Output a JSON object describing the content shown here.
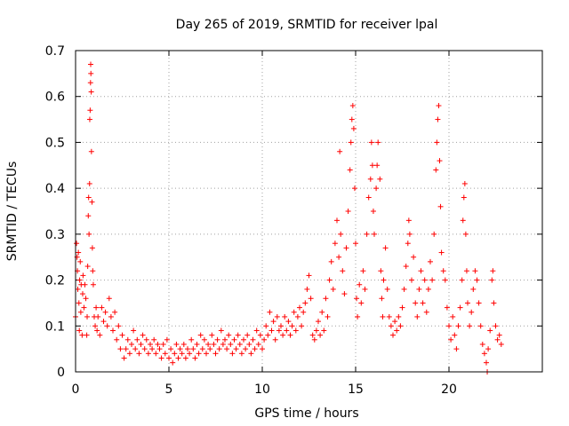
{
  "chart_data": {
    "type": "scatter",
    "title": "Day 265 of 2019, SRMTID for receiver lpal",
    "xlabel": "GPS time / hours",
    "ylabel": "SRMTID / TECUs",
    "xlim": [
      0,
      25
    ],
    "ylim": [
      0,
      0.7
    ],
    "xticks": [
      0,
      5,
      10,
      15,
      20
    ],
    "yticks": [
      0,
      0.1,
      0.2,
      0.3,
      0.4,
      0.5,
      0.6,
      0.7
    ],
    "grid": true,
    "marker": "+",
    "marker_color": "#ff0000",
    "series": [
      {
        "name": "SRMTID",
        "points": [
          [
            0.0,
            0.12
          ],
          [
            0.05,
            0.28
          ],
          [
            0.08,
            0.25
          ],
          [
            0.1,
            0.22
          ],
          [
            0.12,
            0.18
          ],
          [
            0.15,
            0.26
          ],
          [
            0.18,
            0.15
          ],
          [
            0.2,
            0.09
          ],
          [
            0.22,
            0.2
          ],
          [
            0.25,
            0.24
          ],
          [
            0.28,
            0.13
          ],
          [
            0.3,
            0.19
          ],
          [
            0.35,
            0.08
          ],
          [
            0.38,
            0.17
          ],
          [
            0.4,
            0.21
          ],
          [
            0.45,
            0.14
          ],
          [
            0.5,
            0.19
          ],
          [
            0.55,
            0.16
          ],
          [
            0.6,
            0.08
          ],
          [
            0.62,
            0.12
          ],
          [
            0.65,
            0.23
          ],
          [
            0.68,
            0.34
          ],
          [
            0.7,
            0.38
          ],
          [
            0.72,
            0.3
          ],
          [
            0.75,
            0.41
          ],
          [
            0.76,
            0.55
          ],
          [
            0.78,
            0.57
          ],
          [
            0.8,
            0.63
          ],
          [
            0.81,
            0.67
          ],
          [
            0.82,
            0.65
          ],
          [
            0.84,
            0.61
          ],
          [
            0.85,
            0.48
          ],
          [
            0.88,
            0.37
          ],
          [
            0.9,
            0.27
          ],
          [
            0.92,
            0.22
          ],
          [
            0.95,
            0.19
          ],
          [
            1.0,
            0.12
          ],
          [
            1.05,
            0.1
          ],
          [
            1.1,
            0.14
          ],
          [
            1.15,
            0.09
          ],
          [
            1.2,
            0.12
          ],
          [
            1.3,
            0.08
          ],
          [
            1.4,
            0.14
          ],
          [
            1.5,
            0.11
          ],
          [
            1.6,
            0.13
          ],
          [
            1.7,
            0.1
          ],
          [
            1.8,
            0.16
          ],
          [
            1.9,
            0.12
          ],
          [
            2.0,
            0.09
          ],
          [
            2.1,
            0.13
          ],
          [
            2.2,
            0.07
          ],
          [
            2.3,
            0.1
          ],
          [
            2.4,
            0.05
          ],
          [
            2.5,
            0.08
          ],
          [
            2.6,
            0.03
          ],
          [
            2.7,
            0.05
          ],
          [
            2.8,
            0.07
          ],
          [
            2.9,
            0.04
          ],
          [
            3.0,
            0.06
          ],
          [
            3.1,
            0.09
          ],
          [
            3.2,
            0.05
          ],
          [
            3.3,
            0.07
          ],
          [
            3.4,
            0.04
          ],
          [
            3.5,
            0.06
          ],
          [
            3.6,
            0.08
          ],
          [
            3.7,
            0.05
          ],
          [
            3.8,
            0.07
          ],
          [
            3.9,
            0.04
          ],
          [
            4.0,
            0.06
          ],
          [
            4.1,
            0.05
          ],
          [
            4.2,
            0.07
          ],
          [
            4.3,
            0.04
          ],
          [
            4.4,
            0.06
          ],
          [
            4.5,
            0.05
          ],
          [
            4.6,
            0.03
          ],
          [
            4.7,
            0.06
          ],
          [
            4.8,
            0.04
          ],
          [
            4.9,
            0.07
          ],
          [
            5.0,
            0.03
          ],
          [
            5.1,
            0.05
          ],
          [
            5.2,
            0.02
          ],
          [
            5.3,
            0.04
          ],
          [
            5.4,
            0.06
          ],
          [
            5.5,
            0.03
          ],
          [
            5.6,
            0.05
          ],
          [
            5.7,
            0.04
          ],
          [
            5.8,
            0.06
          ],
          [
            5.9,
            0.03
          ],
          [
            6.0,
            0.05
          ],
          [
            6.1,
            0.04
          ],
          [
            6.2,
            0.07
          ],
          [
            6.3,
            0.05
          ],
          [
            6.4,
            0.03
          ],
          [
            6.5,
            0.06
          ],
          [
            6.6,
            0.04
          ],
          [
            6.7,
            0.08
          ],
          [
            6.8,
            0.05
          ],
          [
            6.9,
            0.07
          ],
          [
            7.0,
            0.04
          ],
          [
            7.1,
            0.06
          ],
          [
            7.2,
            0.05
          ],
          [
            7.3,
            0.08
          ],
          [
            7.4,
            0.06
          ],
          [
            7.5,
            0.04
          ],
          [
            7.6,
            0.07
          ],
          [
            7.7,
            0.05
          ],
          [
            7.8,
            0.09
          ],
          [
            7.9,
            0.06
          ],
          [
            8.0,
            0.07
          ],
          [
            8.1,
            0.05
          ],
          [
            8.2,
            0.08
          ],
          [
            8.3,
            0.06
          ],
          [
            8.4,
            0.04
          ],
          [
            8.5,
            0.07
          ],
          [
            8.6,
            0.05
          ],
          [
            8.7,
            0.08
          ],
          [
            8.8,
            0.06
          ],
          [
            8.9,
            0.04
          ],
          [
            9.0,
            0.07
          ],
          [
            9.1,
            0.05
          ],
          [
            9.2,
            0.08
          ],
          [
            9.3,
            0.06
          ],
          [
            9.4,
            0.04
          ],
          [
            9.5,
            0.07
          ],
          [
            9.6,
            0.05
          ],
          [
            9.7,
            0.09
          ],
          [
            9.8,
            0.06
          ],
          [
            9.9,
            0.08
          ],
          [
            10.0,
            0.05
          ],
          [
            10.1,
            0.07
          ],
          [
            10.2,
            0.1
          ],
          [
            10.3,
            0.08
          ],
          [
            10.4,
            0.13
          ],
          [
            10.5,
            0.09
          ],
          [
            10.6,
            0.11
          ],
          [
            10.7,
            0.07
          ],
          [
            10.8,
            0.12
          ],
          [
            10.9,
            0.09
          ],
          [
            11.0,
            0.1
          ],
          [
            11.1,
            0.08
          ],
          [
            11.2,
            0.12
          ],
          [
            11.3,
            0.09
          ],
          [
            11.4,
            0.11
          ],
          [
            11.5,
            0.08
          ],
          [
            11.6,
            0.1
          ],
          [
            11.7,
            0.13
          ],
          [
            11.8,
            0.09
          ],
          [
            11.9,
            0.12
          ],
          [
            12.0,
            0.14
          ],
          [
            12.1,
            0.1
          ],
          [
            12.2,
            0.13
          ],
          [
            12.3,
            0.15
          ],
          [
            12.4,
            0.18
          ],
          [
            12.5,
            0.21
          ],
          [
            12.6,
            0.16
          ],
          [
            12.7,
            0.08
          ],
          [
            12.8,
            0.07
          ],
          [
            12.9,
            0.09
          ],
          [
            13.0,
            0.11
          ],
          [
            13.1,
            0.08
          ],
          [
            13.2,
            0.13
          ],
          [
            13.3,
            0.09
          ],
          [
            13.4,
            0.16
          ],
          [
            13.5,
            0.12
          ],
          [
            13.6,
            0.2
          ],
          [
            13.7,
            0.24
          ],
          [
            13.8,
            0.18
          ],
          [
            13.9,
            0.28
          ],
          [
            14.0,
            0.33
          ],
          [
            14.1,
            0.25
          ],
          [
            14.15,
            0.48
          ],
          [
            14.2,
            0.3
          ],
          [
            14.3,
            0.22
          ],
          [
            14.4,
            0.17
          ],
          [
            14.5,
            0.27
          ],
          [
            14.6,
            0.35
          ],
          [
            14.7,
            0.44
          ],
          [
            14.75,
            0.5
          ],
          [
            14.8,
            0.55
          ],
          [
            14.85,
            0.58
          ],
          [
            14.9,
            0.53
          ],
          [
            14.95,
            0.4
          ],
          [
            15.0,
            0.28
          ],
          [
            15.05,
            0.16
          ],
          [
            15.1,
            0.12
          ],
          [
            15.2,
            0.19
          ],
          [
            15.3,
            0.15
          ],
          [
            15.4,
            0.22
          ],
          [
            15.5,
            0.18
          ],
          [
            15.6,
            0.3
          ],
          [
            15.7,
            0.38
          ],
          [
            15.8,
            0.42
          ],
          [
            15.85,
            0.5
          ],
          [
            15.9,
            0.45
          ],
          [
            15.95,
            0.35
          ],
          [
            16.0,
            0.3
          ],
          [
            16.1,
            0.4
          ],
          [
            16.15,
            0.45
          ],
          [
            16.2,
            0.5
          ],
          [
            16.3,
            0.42
          ],
          [
            16.35,
            0.22
          ],
          [
            16.4,
            0.16
          ],
          [
            16.45,
            0.12
          ],
          [
            16.5,
            0.2
          ],
          [
            16.6,
            0.27
          ],
          [
            16.7,
            0.18
          ],
          [
            16.8,
            0.12
          ],
          [
            16.9,
            0.1
          ],
          [
            17.0,
            0.08
          ],
          [
            17.1,
            0.11
          ],
          [
            17.2,
            0.09
          ],
          [
            17.3,
            0.12
          ],
          [
            17.4,
            0.1
          ],
          [
            17.5,
            0.14
          ],
          [
            17.6,
            0.18
          ],
          [
            17.7,
            0.23
          ],
          [
            17.8,
            0.28
          ],
          [
            17.85,
            0.33
          ],
          [
            17.9,
            0.3
          ],
          [
            18.0,
            0.2
          ],
          [
            18.1,
            0.25
          ],
          [
            18.2,
            0.15
          ],
          [
            18.3,
            0.12
          ],
          [
            18.4,
            0.18
          ],
          [
            18.5,
            0.22
          ],
          [
            18.6,
            0.15
          ],
          [
            18.7,
            0.2
          ],
          [
            18.8,
            0.13
          ],
          [
            18.9,
            0.18
          ],
          [
            19.0,
            0.24
          ],
          [
            19.1,
            0.2
          ],
          [
            19.2,
            0.3
          ],
          [
            19.3,
            0.44
          ],
          [
            19.35,
            0.5
          ],
          [
            19.4,
            0.55
          ],
          [
            19.45,
            0.58
          ],
          [
            19.5,
            0.46
          ],
          [
            19.55,
            0.36
          ],
          [
            19.6,
            0.26
          ],
          [
            19.7,
            0.22
          ],
          [
            19.8,
            0.2
          ],
          [
            19.9,
            0.14
          ],
          [
            20.0,
            0.1
          ],
          [
            20.1,
            0.07
          ],
          [
            20.2,
            0.12
          ],
          [
            20.3,
            0.08
          ],
          [
            20.4,
            0.05
          ],
          [
            20.5,
            0.1
          ],
          [
            20.6,
            0.14
          ],
          [
            20.7,
            0.2
          ],
          [
            20.75,
            0.33
          ],
          [
            20.8,
            0.38
          ],
          [
            20.85,
            0.41
          ],
          [
            20.9,
            0.3
          ],
          [
            20.95,
            0.22
          ],
          [
            21.0,
            0.15
          ],
          [
            21.1,
            0.1
          ],
          [
            21.2,
            0.13
          ],
          [
            21.3,
            0.18
          ],
          [
            21.4,
            0.22
          ],
          [
            21.5,
            0.2
          ],
          [
            21.6,
            0.15
          ],
          [
            21.7,
            0.1
          ],
          [
            21.8,
            0.06
          ],
          [
            21.9,
            0.04
          ],
          [
            22.0,
            0.02
          ],
          [
            22.05,
            0.0
          ],
          [
            22.1,
            0.05
          ],
          [
            22.2,
            0.09
          ],
          [
            22.3,
            0.2
          ],
          [
            22.35,
            0.22
          ],
          [
            22.4,
            0.15
          ],
          [
            22.5,
            0.1
          ],
          [
            22.6,
            0.07
          ],
          [
            22.7,
            0.08
          ],
          [
            22.8,
            0.06
          ]
        ]
      }
    ]
  }
}
